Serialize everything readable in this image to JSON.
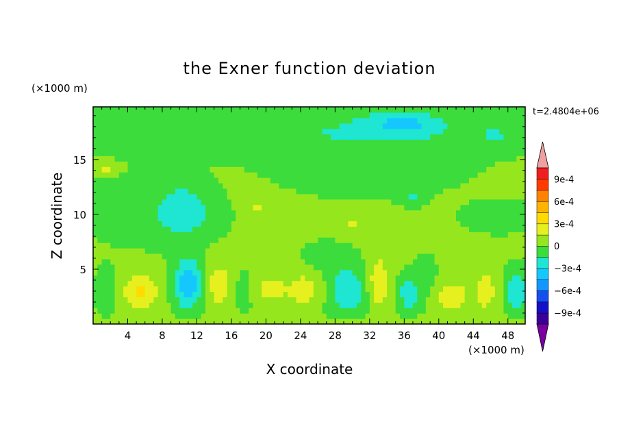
{
  "chart_data": {
    "type": "heatmap",
    "title": "the Exner function deviation",
    "xlabel": "X coordinate",
    "ylabel": "Z coordinate",
    "x_unit_label": "(×1000 m)",
    "y_unit_label": "(×1000 m)",
    "time_label": "t=2.4804e+06",
    "xlim": [
      0,
      50
    ],
    "ylim": [
      0,
      19.8
    ],
    "xticks": [
      4,
      8,
      12,
      16,
      20,
      24,
      28,
      32,
      36,
      40,
      44,
      48
    ],
    "xtick_labels": [
      "4",
      "8",
      "12",
      "16",
      "20",
      "24",
      "28",
      "32",
      "36",
      "40",
      "44",
      "48"
    ],
    "yticks": [
      5,
      10,
      15
    ],
    "ytick_labels": [
      "5",
      "10",
      "15"
    ],
    "colorbar": {
      "levels": [
        -0.00105,
        -0.0009,
        -0.00075,
        -0.0006,
        -0.00045,
        -0.0003,
        -0.00015,
        0,
        0.00015,
        0.0003,
        0.00045,
        0.0006,
        0.00075,
        0.0009,
        0.00105
      ],
      "colors": [
        "#7800a0",
        "#3c009a",
        "#1410c8",
        "#1450f0",
        "#1496ff",
        "#14c8ff",
        "#1ee6d2",
        "#3cdc3c",
        "#96e61e",
        "#e6f01e",
        "#ffdc00",
        "#ffb400",
        "#ff8200",
        "#ff3c00",
        "#f01e1e",
        "#f0a0a0"
      ],
      "tick_values": [
        0.0009,
        0.0006,
        0.0003,
        0,
        -0.0003,
        -0.0006,
        -0.0009
      ],
      "tick_labels": [
        "9e-4",
        "6e-4",
        "3e-4",
        "0",
        "−3e-4",
        "−6e-4",
        "−9e-4"
      ],
      "extend": "both"
    },
    "background_value": 2e-05,
    "features": [
      {
        "x": 26,
        "z": 17.6,
        "sx": 24,
        "sz": 2.2,
        "v": -0.00016
      },
      {
        "x": 36,
        "z": 18.3,
        "sx": 4.5,
        "sz": 1.1,
        "v": -0.00025
      },
      {
        "x": 46.5,
        "z": 17.3,
        "sx": 1.2,
        "sz": 0.4,
        "v": -0.00022
      },
      {
        "x": 32,
        "z": 14.2,
        "sx": 9,
        "sz": 2.2,
        "v": -0.00012
      },
      {
        "x": 3,
        "z": 11,
        "sx": 3.5,
        "sz": 2.5,
        "v": -0.0001
      },
      {
        "x": 10.5,
        "z": 10.5,
        "sx": 3,
        "sz": 2.3,
        "v": -0.00025
      },
      {
        "x": 47,
        "z": 9.8,
        "sx": 3.5,
        "sz": 1.2,
        "v": -0.00014
      },
      {
        "x": 37,
        "z": 11.6,
        "sx": 1.3,
        "sz": 0.7,
        "v": -0.00018
      },
      {
        "x": 1.5,
        "z": 14.2,
        "sx": 1.3,
        "sz": 0.5,
        "v": 0.00018
      },
      {
        "x": 19,
        "z": 10.8,
        "sx": 1.2,
        "sz": 0.5,
        "v": 0.00018
      },
      {
        "x": 30,
        "z": 9,
        "sx": 1.2,
        "sz": 0.7,
        "v": 0.00016
      },
      {
        "x": 8.5,
        "z": 9.5,
        "sx": 6,
        "sz": 2.5,
        "v": -8e-05
      },
      {
        "x": 5.5,
        "z": 3,
        "sx": 2,
        "sz": 1.7,
        "v": 0.0003
      },
      {
        "x": 11,
        "z": 3.7,
        "sx": 1.6,
        "sz": 2.3,
        "v": -0.00045
      },
      {
        "x": 14.5,
        "z": 3.6,
        "sx": 1.5,
        "sz": 2.3,
        "v": 0.00022
      },
      {
        "x": 20.5,
        "z": 3.2,
        "sx": 2,
        "sz": 1.4,
        "v": 0.00018
      },
      {
        "x": 24.5,
        "z": 3.2,
        "sx": 2,
        "sz": 1.7,
        "v": 0.0002
      },
      {
        "x": 29.5,
        "z": 3,
        "sx": 2.2,
        "sz": 2.2,
        "v": -0.00032
      },
      {
        "x": 33,
        "z": 3.8,
        "sx": 1.3,
        "sz": 2.4,
        "v": 0.00026
      },
      {
        "x": 36.5,
        "z": 2.8,
        "sx": 1.2,
        "sz": 1.6,
        "v": -0.00028
      },
      {
        "x": 41.5,
        "z": 2.6,
        "sx": 2,
        "sz": 1.3,
        "v": 0.00024
      },
      {
        "x": 45.5,
        "z": 3,
        "sx": 1.2,
        "sz": 1.8,
        "v": 0.00022
      },
      {
        "x": 49,
        "z": 3,
        "sx": 1.2,
        "sz": 1.8,
        "v": -0.00032
      },
      {
        "x": 1.5,
        "z": 3,
        "sx": 1.2,
        "sz": 2,
        "v": -0.00012
      },
      {
        "x": 17.5,
        "z": 3,
        "sx": 1.3,
        "sz": 2,
        "v": -8e-05
      },
      {
        "x": 27,
        "z": 6,
        "sx": 2.5,
        "sz": 1.3,
        "v": -0.00012
      },
      {
        "x": 38.5,
        "z": 4,
        "sx": 1.2,
        "sz": 2,
        "v": -0.0001
      },
      {
        "x": 25,
        "z": 0.3,
        "sx": 25,
        "sz": 0.3,
        "v": 0.00012
      }
    ]
  }
}
